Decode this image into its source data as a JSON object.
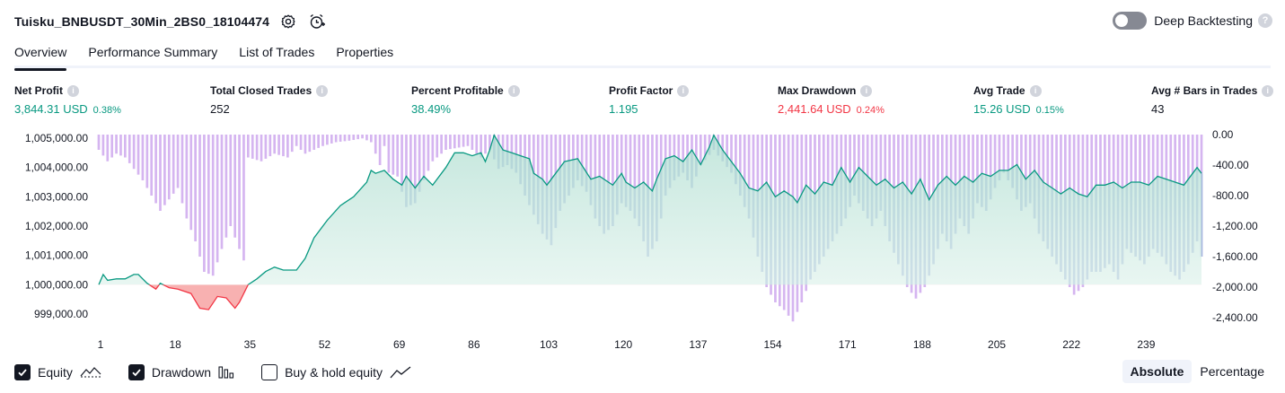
{
  "header": {
    "title": "Tuisku_BNBUSDT_30Min_2BS0_18104474",
    "settings_icon": "gear-icon",
    "alert_icon": "alarm-add-icon"
  },
  "deep_backtesting": {
    "label": "Deep Backtesting",
    "enabled": false,
    "help": "?"
  },
  "tabs": [
    {
      "label": "Overview",
      "active": true
    },
    {
      "label": "Performance Summary",
      "active": false
    },
    {
      "label": "List of Trades",
      "active": false
    },
    {
      "label": "Properties",
      "active": false
    }
  ],
  "metrics": [
    {
      "label": "Net Profit",
      "value": "3,844.31 USD",
      "pct": "0.38%",
      "color": "#089981"
    },
    {
      "label": "Total Closed Trades",
      "value": "252",
      "pct": "",
      "color": "#131722"
    },
    {
      "label": "Percent Profitable",
      "value": "38.49%",
      "pct": "",
      "color": "#089981"
    },
    {
      "label": "Profit Factor",
      "value": "1.195",
      "pct": "",
      "color": "#089981"
    },
    {
      "label": "Max Drawdown",
      "value": "2,441.64 USD",
      "pct": "0.24%",
      "color": "#f23645"
    },
    {
      "label": "Avg Trade",
      "value": "15.26 USD",
      "pct": "0.15%",
      "color": "#089981"
    },
    {
      "label": "Avg # Bars in Trades",
      "value": "43",
      "pct": "",
      "color": "#131722"
    }
  ],
  "info_glyph": "i",
  "chart_data": {
    "type": "line",
    "equity": {
      "ylim": [
        998600,
        1005200
      ],
      "baseline": 1000000,
      "ticks": [
        "1,005,000.00",
        "1,004,000.00",
        "1,003,000.00",
        "1,002,000.00",
        "1,001,000.00",
        "1,000,000.00",
        "999,000.00"
      ],
      "tick_values": [
        1005000,
        1004000,
        1003000,
        1002000,
        1001000,
        1000000,
        999000
      ],
      "keypoints": [
        [
          1,
          1000000
        ],
        [
          2,
          1000350
        ],
        [
          3,
          1000150
        ],
        [
          5,
          1000200
        ],
        [
          7,
          1000200
        ],
        [
          9,
          1000350
        ],
        [
          10,
          1000350
        ],
        [
          12,
          1000050
        ],
        [
          14,
          999850
        ],
        [
          15,
          1000050
        ],
        [
          17,
          999900
        ],
        [
          19,
          999850
        ],
        [
          22,
          999700
        ],
        [
          24,
          999200
        ],
        [
          26,
          999150
        ],
        [
          28,
          999600
        ],
        [
          30,
          999550
        ],
        [
          32,
          999200
        ],
        [
          33,
          999400
        ],
        [
          35,
          1000000
        ],
        [
          37,
          1000200
        ],
        [
          39,
          1000450
        ],
        [
          41,
          1000600
        ],
        [
          43,
          1000500
        ],
        [
          46,
          1000500
        ],
        [
          48,
          1000900
        ],
        [
          50,
          1001600
        ],
        [
          53,
          1002200
        ],
        [
          56,
          1002700
        ],
        [
          59,
          1003000
        ],
        [
          62,
          1003500
        ],
        [
          63,
          1003900
        ],
        [
          64,
          1003800
        ],
        [
          66,
          1003900
        ],
        [
          68,
          1003600
        ],
        [
          70,
          1003400
        ],
        [
          71,
          1003700
        ],
        [
          73,
          1003300
        ],
        [
          75,
          1003700
        ],
        [
          77,
          1003400
        ],
        [
          80,
          1004000
        ],
        [
          82,
          1004500
        ],
        [
          84,
          1004500
        ],
        [
          86,
          1004400
        ],
        [
          88,
          1004500
        ],
        [
          89,
          1004200
        ],
        [
          90,
          1004600
        ],
        [
          91,
          1005100
        ],
        [
          93,
          1004600
        ],
        [
          95,
          1004500
        ],
        [
          97,
          1004400
        ],
        [
          99,
          1004300
        ],
        [
          100,
          1003800
        ],
        [
          102,
          1003600
        ],
        [
          103,
          1003400
        ],
        [
          105,
          1003800
        ],
        [
          107,
          1004200
        ],
        [
          110,
          1004300
        ],
        [
          113,
          1003600
        ],
        [
          115,
          1003700
        ],
        [
          118,
          1003400
        ],
        [
          120,
          1003800
        ],
        [
          121,
          1003500
        ],
        [
          123,
          1003300
        ],
        [
          125,
          1003500
        ],
        [
          127,
          1003200
        ],
        [
          128,
          1003600
        ],
        [
          130,
          1004300
        ],
        [
          132,
          1004400
        ],
        [
          134,
          1004200
        ],
        [
          136,
          1004600
        ],
        [
          138,
          1004100
        ],
        [
          140,
          1004700
        ],
        [
          141,
          1005100
        ],
        [
          143,
          1004600
        ],
        [
          145,
          1004200
        ],
        [
          147,
          1003800
        ],
        [
          149,
          1003300
        ],
        [
          151,
          1003200
        ],
        [
          153,
          1003500
        ],
        [
          155,
          1003000
        ],
        [
          157,
          1003200
        ],
        [
          159,
          1003000
        ],
        [
          160,
          1002800
        ],
        [
          162,
          1003400
        ],
        [
          164,
          1003100
        ],
        [
          166,
          1003500
        ],
        [
          168,
          1003400
        ],
        [
          170,
          1004000
        ],
        [
          172,
          1003500
        ],
        [
          174,
          1004000
        ],
        [
          176,
          1003700
        ],
        [
          178,
          1003400
        ],
        [
          180,
          1003600
        ],
        [
          182,
          1003300
        ],
        [
          184,
          1003500
        ],
        [
          186,
          1003100
        ],
        [
          188,
          1003600
        ],
        [
          190,
          1002900
        ],
        [
          192,
          1003400
        ],
        [
          194,
          1003700
        ],
        [
          196,
          1003400
        ],
        [
          198,
          1003700
        ],
        [
          200,
          1003500
        ],
        [
          202,
          1003800
        ],
        [
          204,
          1003700
        ],
        [
          206,
          1003900
        ],
        [
          208,
          1003900
        ],
        [
          210,
          1004100
        ],
        [
          212,
          1003600
        ],
        [
          214,
          1003900
        ],
        [
          216,
          1003500
        ],
        [
          218,
          1003300
        ],
        [
          220,
          1003100
        ],
        [
          222,
          1003300
        ],
        [
          224,
          1003100
        ],
        [
          226,
          1003000
        ],
        [
          228,
          1003400
        ],
        [
          230,
          1003400
        ],
        [
          232,
          1003500
        ],
        [
          234,
          1003300
        ],
        [
          236,
          1003500
        ],
        [
          238,
          1003500
        ],
        [
          240,
          1003400
        ],
        [
          242,
          1003700
        ],
        [
          244,
          1003600
        ],
        [
          246,
          1003500
        ],
        [
          248,
          1003400
        ],
        [
          250,
          1003800
        ],
        [
          251,
          1004000
        ],
        [
          252,
          1003800
        ]
      ]
    },
    "drawdown": {
      "ylim": [
        0,
        -2600
      ],
      "ticks": [
        "0.00",
        "-400.00",
        "-800.00",
        "-1,200.00",
        "-1,600.00",
        "-2,000.00",
        "-2,400.00"
      ],
      "tick_values": [
        0,
        -400,
        -800,
        -1200,
        -1600,
        -2000,
        -2400
      ],
      "keypoints": [
        [
          1,
          -200
        ],
        [
          3,
          -350
        ],
        [
          5,
          -250
        ],
        [
          7,
          -300
        ],
        [
          9,
          -450
        ],
        [
          11,
          -600
        ],
        [
          13,
          -800
        ],
        [
          15,
          -1000
        ],
        [
          17,
          -850
        ],
        [
          19,
          -700
        ],
        [
          21,
          -1100
        ],
        [
          23,
          -1400
        ],
        [
          25,
          -1800
        ],
        [
          27,
          -1850
        ],
        [
          29,
          -1500
        ],
        [
          31,
          -1200
        ],
        [
          33,
          -1500
        ],
        [
          34,
          -1650
        ],
        [
          35,
          -300
        ],
        [
          38,
          -350
        ],
        [
          41,
          -250
        ],
        [
          44,
          -300
        ],
        [
          46,
          -150
        ],
        [
          48,
          -250
        ],
        [
          50,
          -200
        ],
        [
          52,
          -150
        ],
        [
          55,
          -100
        ],
        [
          58,
          -80
        ],
        [
          61,
          -50
        ],
        [
          63,
          -100
        ],
        [
          65,
          -400
        ],
        [
          66,
          -150
        ],
        [
          67,
          -500
        ],
        [
          69,
          -550
        ],
        [
          71,
          -950
        ],
        [
          73,
          -900
        ],
        [
          75,
          -600
        ],
        [
          77,
          -350
        ],
        [
          80,
          -200
        ],
        [
          85,
          -150
        ],
        [
          88,
          -300
        ],
        [
          90,
          -200
        ],
        [
          92,
          -450
        ],
        [
          94,
          -400
        ],
        [
          96,
          -500
        ],
        [
          98,
          -800
        ],
        [
          100,
          -1050
        ],
        [
          102,
          -1300
        ],
        [
          104,
          -1450
        ],
        [
          106,
          -1000
        ],
        [
          108,
          -800
        ],
        [
          110,
          -600
        ],
        [
          112,
          -750
        ],
        [
          114,
          -1100
        ],
        [
          116,
          -1300
        ],
        [
          118,
          -1200
        ],
        [
          120,
          -900
        ],
        [
          122,
          -1000
        ],
        [
          124,
          -1200
        ],
        [
          126,
          -1600
        ],
        [
          128,
          -1400
        ],
        [
          130,
          -800
        ],
        [
          132,
          -600
        ],
        [
          134,
          -500
        ],
        [
          136,
          -700
        ],
        [
          138,
          -400
        ],
        [
          141,
          -200
        ],
        [
          143,
          -350
        ],
        [
          145,
          -500
        ],
        [
          147,
          -800
        ],
        [
          149,
          -1100
        ],
        [
          151,
          -1600
        ],
        [
          153,
          -2000
        ],
        [
          155,
          -2200
        ],
        [
          157,
          -2300
        ],
        [
          159,
          -2450
        ],
        [
          161,
          -2200
        ],
        [
          163,
          -1900
        ],
        [
          165,
          -1700
        ],
        [
          167,
          -1500
        ],
        [
          169,
          -1300
        ],
        [
          171,
          -1100
        ],
        [
          173,
          -800
        ],
        [
          175,
          -1000
        ],
        [
          177,
          -1200
        ],
        [
          179,
          -1000
        ],
        [
          181,
          -1400
        ],
        [
          183,
          -1700
        ],
        [
          185,
          -2000
        ],
        [
          187,
          -2150
        ],
        [
          189,
          -2000
        ],
        [
          191,
          -1700
        ],
        [
          193,
          -1300
        ],
        [
          195,
          -1500
        ],
        [
          197,
          -1100
        ],
        [
          199,
          -1300
        ],
        [
          201,
          -900
        ],
        [
          203,
          -1000
        ],
        [
          205,
          -700
        ],
        [
          207,
          -500
        ],
        [
          209,
          -700
        ],
        [
          211,
          -1000
        ],
        [
          213,
          -900
        ],
        [
          215,
          -1300
        ],
        [
          217,
          -1500
        ],
        [
          219,
          -1700
        ],
        [
          221,
          -1900
        ],
        [
          223,
          -2100
        ],
        [
          225,
          -2000
        ],
        [
          227,
          -1800
        ],
        [
          229,
          -1800
        ],
        [
          231,
          -1700
        ],
        [
          233,
          -1900
        ],
        [
          235,
          -1500
        ],
        [
          237,
          -1600
        ],
        [
          239,
          -1700
        ],
        [
          241,
          -1500
        ],
        [
          243,
          -1600
        ],
        [
          245,
          -1800
        ],
        [
          247,
          -1900
        ],
        [
          249,
          -1700
        ],
        [
          251,
          -1400
        ],
        [
          252,
          -1600
        ]
      ]
    },
    "x_ticks": [
      1,
      18,
      35,
      52,
      69,
      86,
      103,
      120,
      137,
      154,
      171,
      188,
      205,
      222,
      239
    ],
    "xlim": [
      1,
      252
    ],
    "colors": {
      "equity_line": "#089981",
      "equity_fill_top": "#b2dfd2",
      "underwater_fill": "#f7a9a9",
      "underwater_line": "#f23645",
      "drawdown_bar": "#d5b5f0",
      "overlap_bar": "#a7b4df"
    }
  },
  "footer": {
    "checkboxes": [
      {
        "label": "Equity",
        "checked": true,
        "icon": "equity-line-icon"
      },
      {
        "label": "Drawdown",
        "checked": true,
        "icon": "drawdown-bars-icon"
      },
      {
        "label": "Buy & hold equity",
        "checked": false,
        "icon": "buy-hold-line-icon"
      }
    ],
    "modes": [
      {
        "label": "Absolute",
        "active": true
      },
      {
        "label": "Percentage",
        "active": false
      }
    ]
  }
}
